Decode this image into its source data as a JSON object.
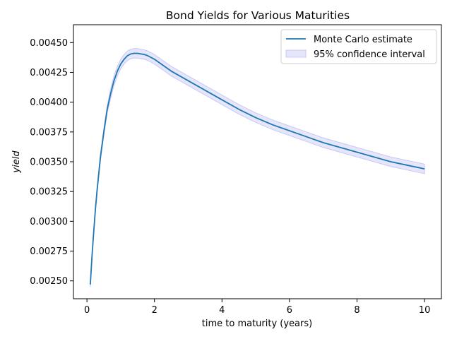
{
  "chart_data": {
    "type": "line",
    "title": "Bond Yields for Various Maturities",
    "xlabel": "time to maturity (years)",
    "ylabel": "yield",
    "xlim": [
      -0.4,
      10.5
    ],
    "ylim": [
      0.00235,
      0.00465
    ],
    "x_ticks": [
      0,
      2,
      4,
      6,
      8,
      10
    ],
    "x_tick_labels": [
      "0",
      "2",
      "4",
      "6",
      "8",
      "10"
    ],
    "y_ticks": [
      0.0025,
      0.00275,
      0.003,
      0.00325,
      0.0035,
      0.00375,
      0.004,
      0.00425,
      0.0045
    ],
    "y_tick_labels": [
      "0.00250",
      "0.00275",
      "0.00300",
      "0.00325",
      "0.00350",
      "0.00375",
      "0.00400",
      "0.00425",
      "0.00450"
    ],
    "grid": false,
    "legend_position": "top-right",
    "series": [
      {
        "name": "Monte Carlo estimate",
        "color": "#1f77b4",
        "x": [
          0.1,
          0.15,
          0.2,
          0.25,
          0.3,
          0.4,
          0.5,
          0.6,
          0.7,
          0.8,
          0.9,
          1.0,
          1.1,
          1.2,
          1.3,
          1.4,
          1.5,
          1.6,
          1.7,
          1.8,
          2.0,
          2.25,
          2.5,
          2.75,
          3.0,
          3.25,
          3.5,
          3.75,
          4.0,
          4.5,
          5.0,
          5.5,
          6.0,
          6.5,
          7.0,
          7.5,
          8.0,
          8.5,
          9.0,
          9.5,
          10.0
        ],
        "values": [
          0.00247,
          0.00271,
          0.00291,
          0.0031,
          0.00326,
          0.00354,
          0.00375,
          0.00394,
          0.00407,
          0.00418,
          0.00426,
          0.00432,
          0.00436,
          0.00439,
          0.004405,
          0.00441,
          0.00441,
          0.004405,
          0.0044,
          0.00439,
          0.00436,
          0.00431,
          0.00426,
          0.00422,
          0.00418,
          0.00414,
          0.0041,
          0.00406,
          0.00402,
          0.00394,
          0.00387,
          0.00381,
          0.00376,
          0.00371,
          0.00366,
          0.00362,
          0.00358,
          0.00354,
          0.0035,
          0.00347,
          0.00344
        ]
      },
      {
        "name": "95% confidence interval",
        "color": "#e6e6fa",
        "edge_color": "#c8c8f5",
        "half_width": [
          2e-05,
          2e-05,
          2e-05,
          2e-05,
          2e-05,
          3e-05,
          3e-05,
          3e-05,
          4e-05,
          4e-05,
          4e-05,
          4e-05,
          4e-05,
          4e-05,
          4e-05,
          4e-05,
          4e-05,
          4e-05,
          4e-05,
          4e-05,
          4e-05,
          4e-05,
          4e-05,
          4e-05,
          4e-05,
          4e-05,
          4e-05,
          4e-05,
          4e-05,
          4e-05,
          4e-05,
          4e-05,
          4e-05,
          4e-05,
          4e-05,
          4e-05,
          4e-05,
          4e-05,
          4e-05,
          4e-05,
          4e-05
        ]
      }
    ]
  }
}
